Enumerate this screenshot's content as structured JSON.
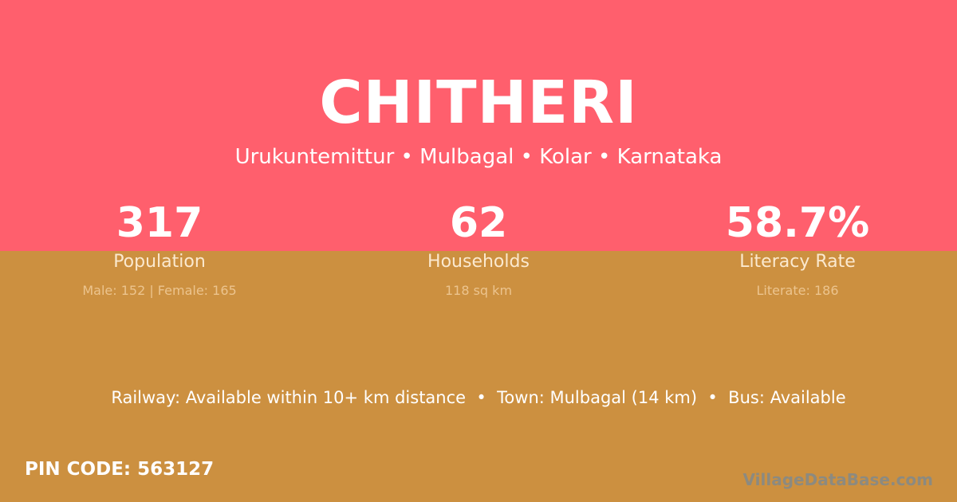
{
  "colors": {
    "top_band": "#ff5f6d",
    "bottom_band": "#cc9040"
  },
  "village": {
    "name": "CHITHERI",
    "location": "Urukuntemittur • Mulbagal • Kolar • Karnataka"
  },
  "stats": [
    {
      "value": "317",
      "label": "Population",
      "detail": "Male: 152 | Female: 165"
    },
    {
      "value": "62",
      "label": "Households",
      "detail": "118 sq km"
    },
    {
      "value": "58.7%",
      "label": "Literacy Rate",
      "detail": "Literate: 186"
    }
  ],
  "connectivity": "Railway: Available within 10+ km distance  •  Town: Mulbagal (14 km)  •  Bus: Available",
  "pin_code": "PIN CODE: 563127",
  "watermark": "VillageDataBase.com"
}
